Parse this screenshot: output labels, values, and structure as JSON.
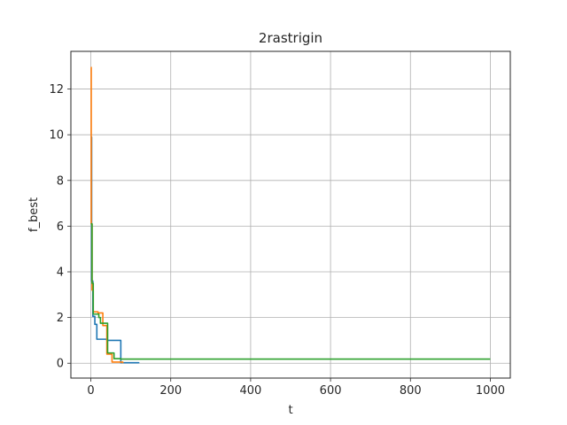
{
  "chart_data": {
    "type": "line",
    "title": "2rastrigin",
    "xlabel": "t",
    "ylabel": "f_best",
    "xlim": [
      -50,
      1050
    ],
    "ylim": [
      -0.65,
      13.65
    ],
    "xticks": [
      0,
      200,
      400,
      600,
      800,
      1000
    ],
    "yticks": [
      0,
      2,
      4,
      6,
      8,
      10,
      12
    ],
    "grid": true,
    "legend": "none",
    "series": [
      {
        "color": "#1f77b4",
        "step": true,
        "points": [
          [
            0,
            9.9
          ],
          [
            2,
            3.6
          ],
          [
            5,
            2.05
          ],
          [
            10,
            1.7
          ],
          [
            15,
            1.05
          ],
          [
            38,
            1.05
          ],
          [
            40,
            1.0
          ],
          [
            72,
            1.0
          ],
          [
            75,
            0.02
          ],
          [
            120,
            0.0
          ]
        ]
      },
      {
        "color": "#ff7f0e",
        "step": true,
        "points": [
          [
            0,
            12.95
          ],
          [
            1,
            6.1
          ],
          [
            3,
            3.2
          ],
          [
            6,
            2.25
          ],
          [
            14,
            2.25
          ],
          [
            18,
            2.2
          ],
          [
            30,
            1.65
          ],
          [
            38,
            1.65
          ],
          [
            40,
            0.4
          ],
          [
            50,
            0.4
          ],
          [
            53,
            0.05
          ],
          [
            80,
            0.0
          ]
        ]
      },
      {
        "color": "#2ca02c",
        "step": true,
        "points": [
          [
            0,
            6.1
          ],
          [
            3,
            3.5
          ],
          [
            6,
            2.15
          ],
          [
            20,
            2.0
          ],
          [
            24,
            1.75
          ],
          [
            38,
            1.75
          ],
          [
            42,
            0.45
          ],
          [
            55,
            0.45
          ],
          [
            58,
            0.2
          ],
          [
            75,
            0.18
          ],
          [
            1000,
            0.18
          ]
        ]
      }
    ]
  }
}
